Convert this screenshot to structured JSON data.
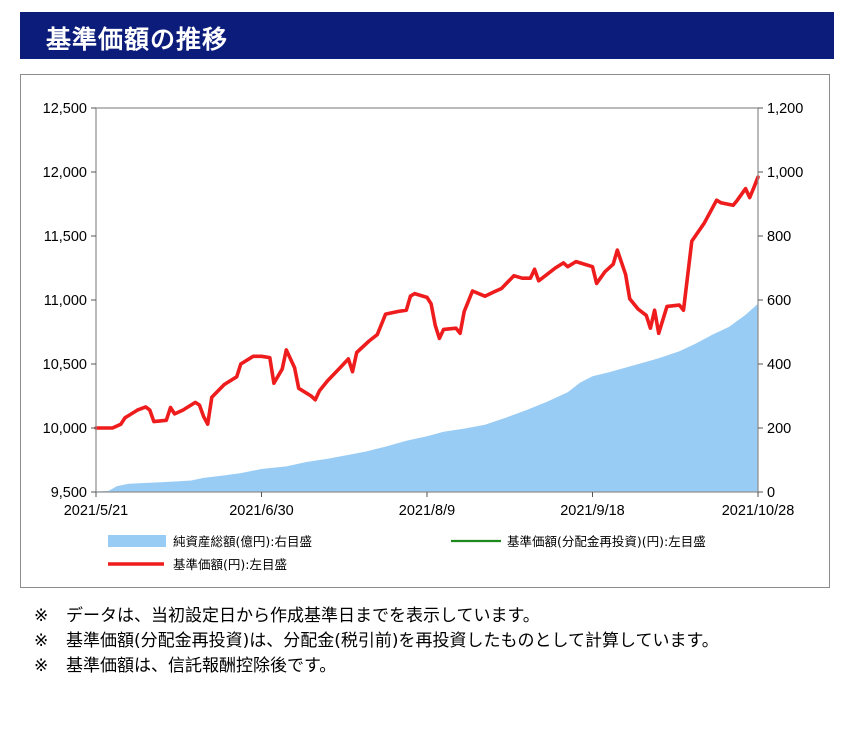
{
  "header": {
    "title": "基準価額の推移"
  },
  "chart_data": {
    "type": "line",
    "title": "",
    "y_left": {
      "min": 9500,
      "max": 12500,
      "step": 500,
      "ticks": [
        "9,500",
        "10,000",
        "10,500",
        "11,000",
        "11,500",
        "12,000",
        "12,500"
      ]
    },
    "y_right": {
      "min": 0,
      "max": 1200,
      "step": 200,
      "ticks": [
        "0",
        "200",
        "400",
        "600",
        "800",
        "1,000",
        "1,200"
      ]
    },
    "x_tick_labels": [
      "2021/5/21",
      "2021/6/30",
      "2021/8/9",
      "2021/9/18",
      "2021/10/28"
    ],
    "x_ticks": [
      "2021-05-21",
      "2021-06-30",
      "2021-08-09",
      "2021-09-18",
      "2021-10-28"
    ],
    "legend": [
      {
        "label": "純資産総額(億円):右目盛",
        "color": "#99ccf5"
      },
      {
        "label": "基準価額(分配金再投資)(円):左目盛",
        "color": "#1e8a1e"
      },
      {
        "label": "基準価額(円):左目盛",
        "color": "#ee1c1c"
      }
    ],
    "series": [
      {
        "name": "純資産総額(億円):右目盛",
        "type": "area",
        "color": "#99ccf5",
        "axis": "right",
        "points": [
          [
            "2021-05-21",
            2
          ],
          [
            "2021-05-24",
            3
          ],
          [
            "2021-05-26",
            18
          ],
          [
            "2021-05-29",
            26
          ],
          [
            "2021-06-03",
            29
          ],
          [
            "2021-06-08",
            32
          ],
          [
            "2021-06-13",
            36
          ],
          [
            "2021-06-16",
            44
          ],
          [
            "2021-06-21",
            52
          ],
          [
            "2021-06-25",
            59
          ],
          [
            "2021-06-30",
            72
          ],
          [
            "2021-07-06",
            80
          ],
          [
            "2021-07-11",
            94
          ],
          [
            "2021-07-16",
            104
          ],
          [
            "2021-07-21",
            116
          ],
          [
            "2021-07-25",
            126
          ],
          [
            "2021-07-30",
            142
          ],
          [
            "2021-08-04",
            160
          ],
          [
            "2021-08-09",
            174
          ],
          [
            "2021-08-13",
            188
          ],
          [
            "2021-08-18",
            198
          ],
          [
            "2021-08-23",
            210
          ],
          [
            "2021-08-28",
            232
          ],
          [
            "2021-09-02",
            256
          ],
          [
            "2021-09-07",
            282
          ],
          [
            "2021-09-12",
            312
          ],
          [
            "2021-09-15",
            342
          ],
          [
            "2021-09-18",
            362
          ],
          [
            "2021-09-22",
            374
          ],
          [
            "2021-09-28",
            396
          ],
          [
            "2021-10-04",
            418
          ],
          [
            "2021-10-09",
            440
          ],
          [
            "2021-10-13",
            464
          ],
          [
            "2021-10-17",
            492
          ],
          [
            "2021-10-21",
            516
          ],
          [
            "2021-10-25",
            554
          ],
          [
            "2021-10-28",
            588
          ]
        ]
      },
      {
        "name": "基準価額(円):左目盛",
        "type": "line",
        "color": "#ee1c1c",
        "axis": "left",
        "points": [
          [
            "2021-05-21",
            10000
          ],
          [
            "2021-05-25",
            10000
          ],
          [
            "2021-05-27",
            10030
          ],
          [
            "2021-05-28",
            10080
          ],
          [
            "2021-05-31",
            10140
          ],
          [
            "2021-06-02",
            10165
          ],
          [
            "2021-06-03",
            10140
          ],
          [
            "2021-06-04",
            10050
          ],
          [
            "2021-06-07",
            10060
          ],
          [
            "2021-06-08",
            10160
          ],
          [
            "2021-06-09",
            10110
          ],
          [
            "2021-06-11",
            10140
          ],
          [
            "2021-06-14",
            10200
          ],
          [
            "2021-06-15",
            10180
          ],
          [
            "2021-06-16",
            10090
          ],
          [
            "2021-06-17",
            10030
          ],
          [
            "2021-06-18",
            10240
          ],
          [
            "2021-06-21",
            10340
          ],
          [
            "2021-06-23",
            10380
          ],
          [
            "2021-06-24",
            10400
          ],
          [
            "2021-06-25",
            10500
          ],
          [
            "2021-06-28",
            10560
          ],
          [
            "2021-06-30",
            10560
          ],
          [
            "2021-07-02",
            10550
          ],
          [
            "2021-07-03",
            10350
          ],
          [
            "2021-07-05",
            10460
          ],
          [
            "2021-07-06",
            10610
          ],
          [
            "2021-07-08",
            10470
          ],
          [
            "2021-07-09",
            10310
          ],
          [
            "2021-07-12",
            10250
          ],
          [
            "2021-07-13",
            10220
          ],
          [
            "2021-07-14",
            10290
          ],
          [
            "2021-07-16",
            10370
          ],
          [
            "2021-07-19",
            10470
          ],
          [
            "2021-07-21",
            10540
          ],
          [
            "2021-07-22",
            10440
          ],
          [
            "2021-07-23",
            10590
          ],
          [
            "2021-07-26",
            10680
          ],
          [
            "2021-07-28",
            10730
          ],
          [
            "2021-07-30",
            10890
          ],
          [
            "2021-08-02",
            10910
          ],
          [
            "2021-08-04",
            10920
          ],
          [
            "2021-08-05",
            11030
          ],
          [
            "2021-08-06",
            11050
          ],
          [
            "2021-08-09",
            11020
          ],
          [
            "2021-08-10",
            10970
          ],
          [
            "2021-08-11",
            10800
          ],
          [
            "2021-08-12",
            10700
          ],
          [
            "2021-08-13",
            10770
          ],
          [
            "2021-08-16",
            10780
          ],
          [
            "2021-08-17",
            10740
          ],
          [
            "2021-08-18",
            10910
          ],
          [
            "2021-08-20",
            11070
          ],
          [
            "2021-08-23",
            11030
          ],
          [
            "2021-08-25",
            11060
          ],
          [
            "2021-08-27",
            11090
          ],
          [
            "2021-08-30",
            11190
          ],
          [
            "2021-09-01",
            11170
          ],
          [
            "2021-09-03",
            11170
          ],
          [
            "2021-09-04",
            11240
          ],
          [
            "2021-09-05",
            11150
          ],
          [
            "2021-09-07",
            11200
          ],
          [
            "2021-09-09",
            11250
          ],
          [
            "2021-09-11",
            11290
          ],
          [
            "2021-09-12",
            11260
          ],
          [
            "2021-09-14",
            11300
          ],
          [
            "2021-09-15",
            11290
          ],
          [
            "2021-09-18",
            11260
          ],
          [
            "2021-09-19",
            11130
          ],
          [
            "2021-09-21",
            11220
          ],
          [
            "2021-09-23",
            11280
          ],
          [
            "2021-09-24",
            11390
          ],
          [
            "2021-09-26",
            11200
          ],
          [
            "2021-09-27",
            11010
          ],
          [
            "2021-09-29",
            10930
          ],
          [
            "2021-10-01",
            10880
          ],
          [
            "2021-10-02",
            10780
          ],
          [
            "2021-10-03",
            10920
          ],
          [
            "2021-10-04",
            10740
          ],
          [
            "2021-10-06",
            10950
          ],
          [
            "2021-10-09",
            10960
          ],
          [
            "2021-10-10",
            10920
          ],
          [
            "2021-10-12",
            11460
          ],
          [
            "2021-10-15",
            11600
          ],
          [
            "2021-10-17",
            11720
          ],
          [
            "2021-10-18",
            11780
          ],
          [
            "2021-10-19",
            11760
          ],
          [
            "2021-10-22",
            11740
          ],
          [
            "2021-10-23",
            11780
          ],
          [
            "2021-10-25",
            11870
          ],
          [
            "2021-10-26",
            11800
          ],
          [
            "2021-10-27",
            11880
          ],
          [
            "2021-10-28",
            11960
          ]
        ]
      }
    ]
  },
  "notes": [
    {
      "mark": "※",
      "text": "データは、当初設定日から作成基準日までを表示しています。"
    },
    {
      "mark": "※",
      "text": "基準価額(分配金再投資)は、分配金(税引前)を再投資したものとして計算しています。"
    },
    {
      "mark": "※",
      "text": "基準価額は、信託報酬控除後です。"
    }
  ]
}
